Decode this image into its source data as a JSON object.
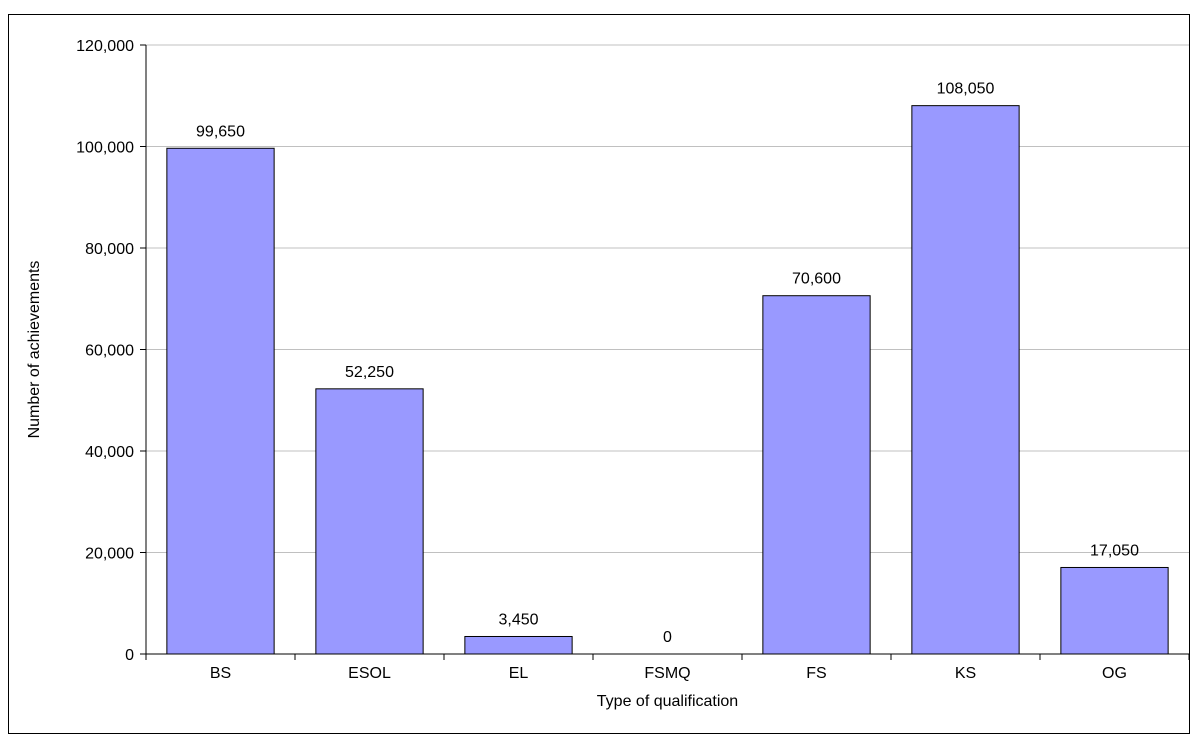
{
  "chart_data": {
    "type": "bar",
    "categories": [
      "BS",
      "ESOL",
      "EL",
      "FSMQ",
      "FS",
      "KS",
      "OG"
    ],
    "values": [
      99650,
      52250,
      3450,
      0,
      70600,
      108050,
      17050
    ],
    "data_labels": [
      "99,650",
      "52,250",
      "3,450",
      "0",
      "70,600",
      "108,050",
      "17,050"
    ],
    "xlabel": "Type of qualification",
    "ylabel": "Number of achievements",
    "ylim": [
      0,
      120000
    ],
    "y_ticks": [
      0,
      20000,
      40000,
      60000,
      80000,
      100000,
      120000
    ],
    "y_tick_labels": [
      "0",
      "20,000",
      "40,000",
      "60,000",
      "80,000",
      "100,000",
      "120,000"
    ],
    "grid": true,
    "legend": "none",
    "colors": {
      "bar": "#9999ff",
      "bar_stroke": "#000000",
      "grid": "#c0c0c0",
      "axis": "#000000"
    }
  }
}
